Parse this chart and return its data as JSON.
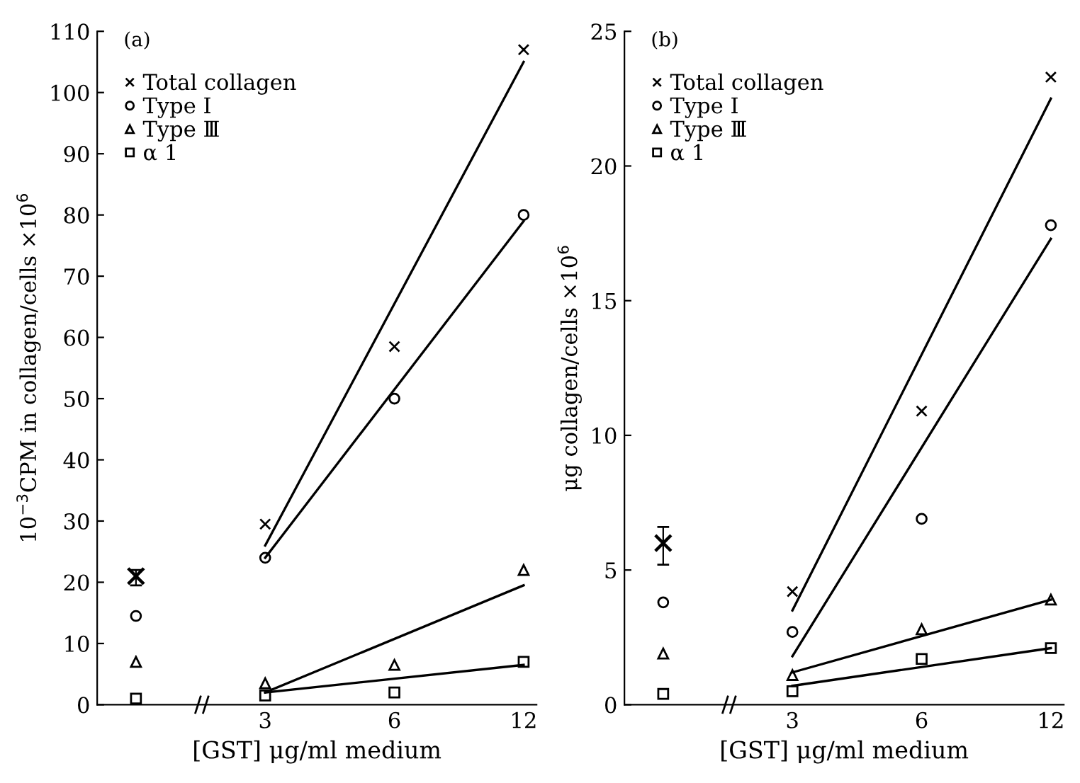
{
  "chart_data": [
    {
      "type": "scatter",
      "title": "(a)",
      "xlabel": "[GST] μg/ml medium",
      "ylabel": "10$^{−3}$CPM in collagen/cells ×10$^{6}$",
      "categories": [
        null,
        "3",
        "6",
        "12"
      ],
      "ylim": [
        0,
        110
      ],
      "yticks": [
        0,
        10,
        20,
        30,
        40,
        50,
        60,
        70,
        80,
        90,
        100,
        110
      ],
      "legend": "top left",
      "grid": false,
      "series": [
        {
          "name": "Total collagen",
          "color": "#000000",
          "marker": "cross",
          "values": [
            21,
            29.5,
            58.5,
            107
          ],
          "errors": [
            [
              19.5,
              22
            ],
            null,
            null,
            null
          ]
        },
        {
          "name": "Type Ⅰ",
          "color": "#000000",
          "marker": "circle",
          "values": [
            14.5,
            24,
            50,
            80
          ]
        },
        {
          "name": "Type Ⅲ",
          "color": "#000000",
          "marker": "triangle",
          "values": [
            7,
            3.5,
            6.5,
            22
          ]
        },
        {
          "name": "α 1",
          "color": "#000000",
          "marker": "square",
          "values": [
            1,
            1.5,
            2,
            7
          ]
        },
        {
          "type": "line",
          "color": "#000000",
          "line_style": "solid",
          "values": [
            null,
            26,
            null,
            105
          ]
        },
        {
          "type": "line",
          "color": "#000000",
          "line_style": "solid",
          "values": [
            null,
            24,
            null,
            79
          ]
        },
        {
          "type": "line",
          "color": "#000000",
          "line_style": "solid",
          "values": [
            null,
            2,
            null,
            19.5
          ]
        },
        {
          "type": "line",
          "color": "#000000",
          "line_style": "solid",
          "values": [
            null,
            2,
            null,
            6.5
          ]
        }
      ]
    },
    {
      "type": "scatter",
      "title": "(b)",
      "xlabel": "[GST] μg/ml medium",
      "ylabel": "μg collagen/cells ×10$^{6}$",
      "categories": [
        null,
        "3",
        "6",
        "12"
      ],
      "ylim": [
        0,
        25
      ],
      "yticks": [
        0,
        5,
        10,
        15,
        20,
        25
      ],
      "legend": "top left",
      "grid": false,
      "series": [
        {
          "name": "Total collagen",
          "color": "#000000",
          "marker": "cross",
          "values": [
            6,
            4.2,
            10.9,
            23.3
          ],
          "errors": [
            [
              5.2,
              6.6
            ],
            null,
            null,
            null
          ]
        },
        {
          "name": "Type Ⅰ",
          "color": "#000000",
          "marker": "circle",
          "values": [
            3.8,
            2.7,
            6.9,
            17.8
          ]
        },
        {
          "name": "Type Ⅲ",
          "color": "#000000",
          "marker": "triangle",
          "values": [
            1.9,
            1.1,
            2.8,
            3.9
          ]
        },
        {
          "name": "α 1",
          "color": "#000000",
          "marker": "square",
          "values": [
            0.4,
            0.5,
            1.7,
            2.1
          ]
        },
        {
          "type": "line",
          "color": "#000000",
          "line_style": "solid",
          "values": [
            null,
            3.5,
            null,
            22.5
          ]
        },
        {
          "type": "line",
          "color": "#000000",
          "line_style": "solid",
          "values": [
            null,
            1.8,
            null,
            17.3
          ]
        },
        {
          "type": "line",
          "color": "#000000",
          "line_style": "solid",
          "values": [
            null,
            1.2,
            null,
            3.9
          ]
        },
        {
          "type": "line",
          "color": "#000000",
          "line_style": "solid",
          "values": [
            null,
            0.7,
            null,
            2.1
          ]
        }
      ]
    }
  ]
}
